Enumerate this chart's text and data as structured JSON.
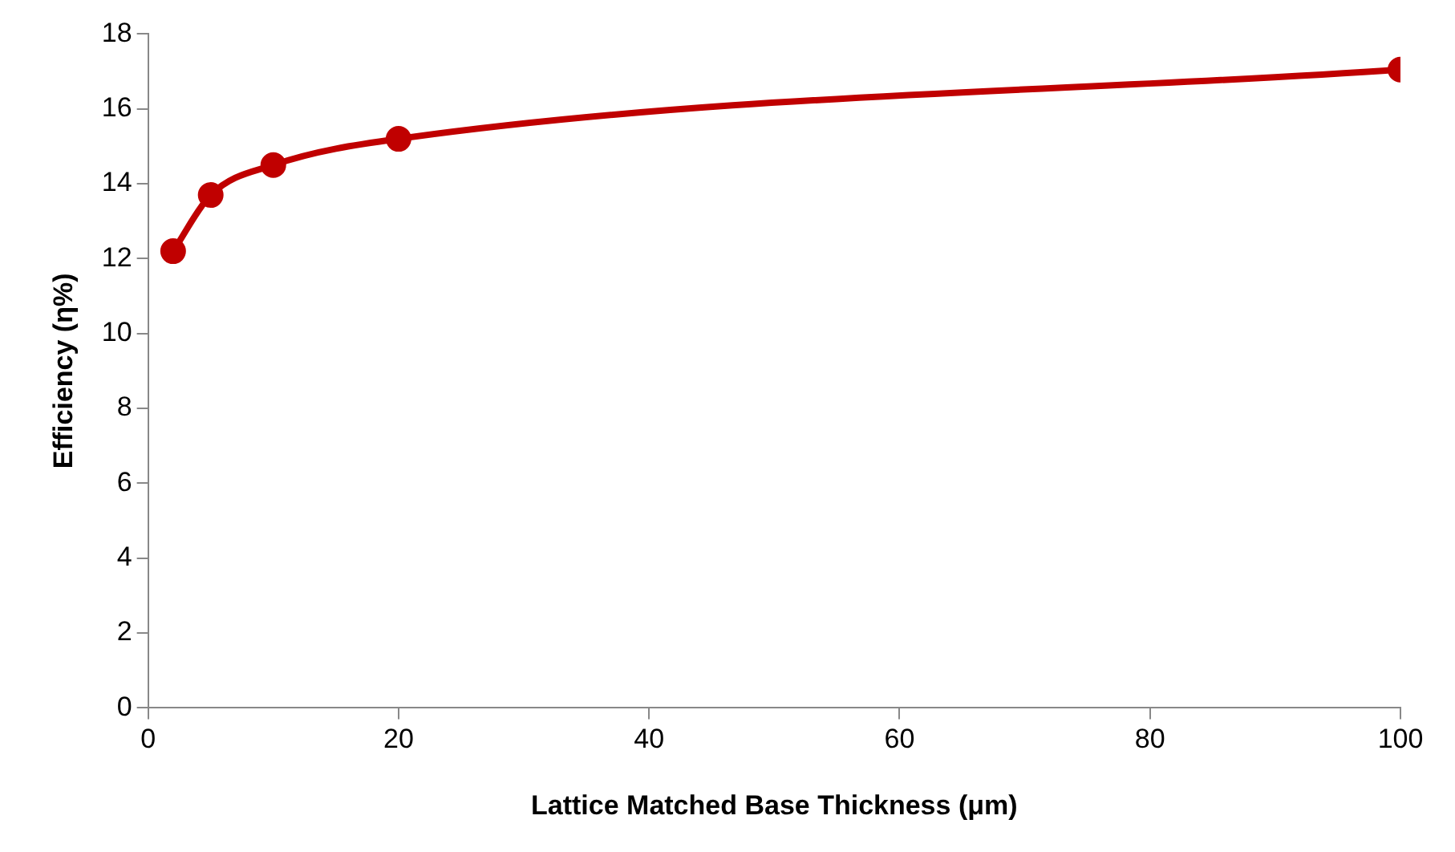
{
  "chart_data": {
    "type": "line",
    "xlabel": "Lattice Matched Base Thickness (μm)",
    "ylabel": "Efficiency (η%)",
    "x": [
      2,
      5,
      10,
      20,
      100
    ],
    "series": [
      {
        "color": "#c00000",
        "values": [
          12.2,
          13.7,
          14.5,
          15.2,
          17.05
        ]
      }
    ],
    "xlim": [
      0,
      100
    ],
    "xticks": [
      0,
      20,
      40,
      60,
      80,
      100
    ],
    "ylim": [
      0,
      18
    ],
    "yticks": [
      0,
      2,
      4,
      6,
      8,
      10,
      12,
      14,
      16,
      18
    ],
    "grid": false,
    "legend": false,
    "marker": "circle",
    "line_style": "solid"
  }
}
